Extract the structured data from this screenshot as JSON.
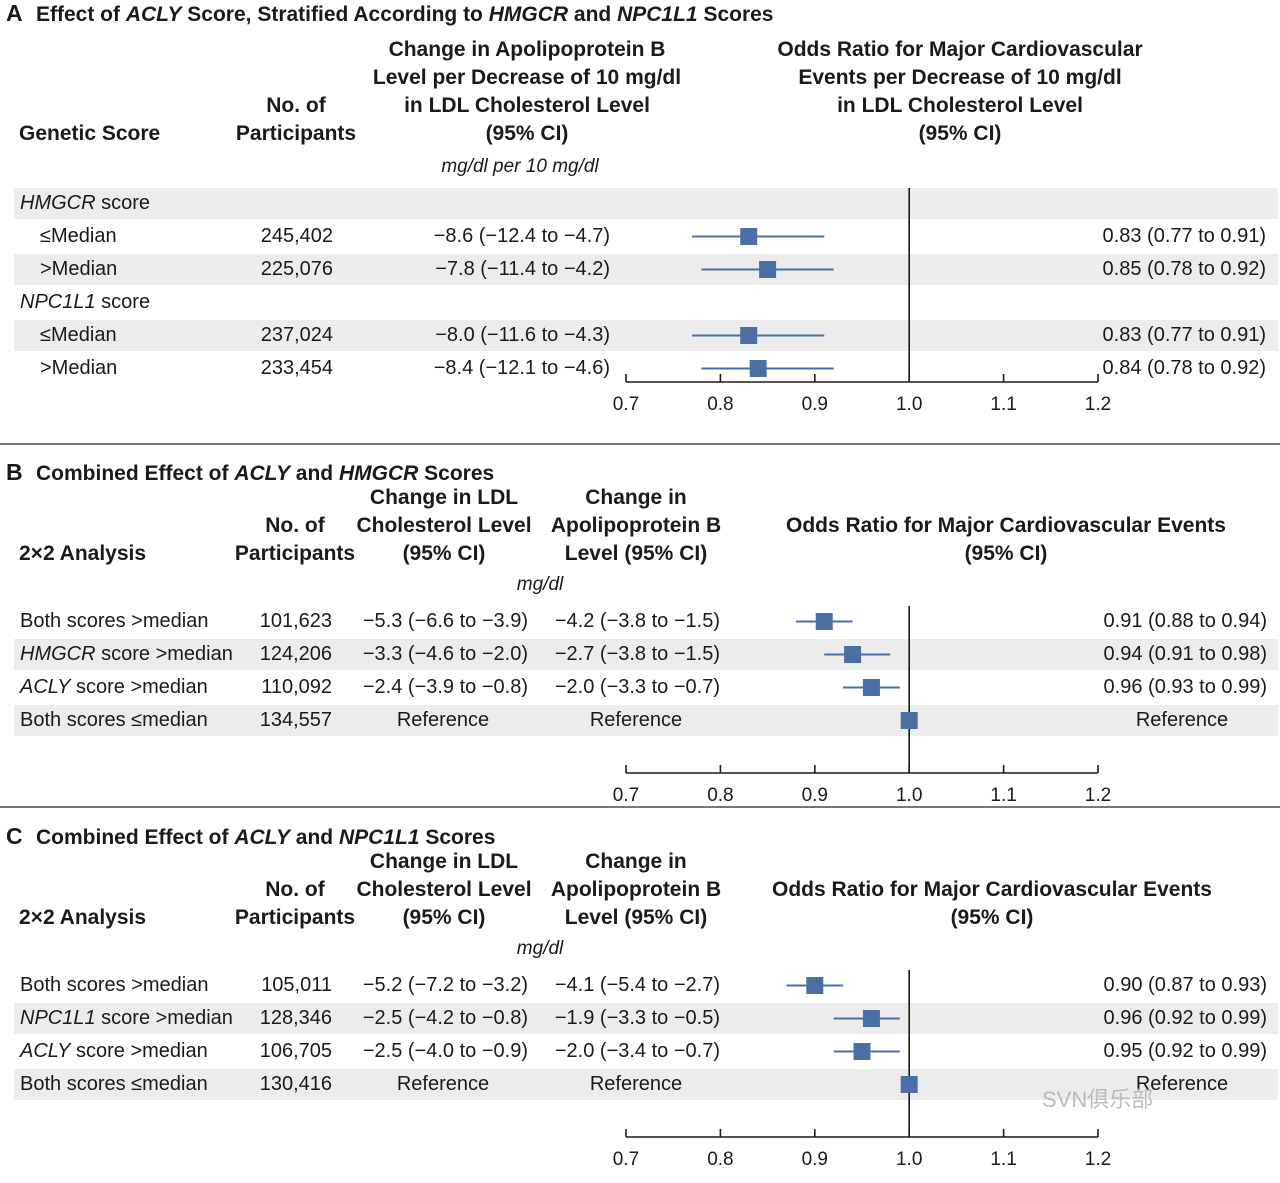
{
  "panelA": {
    "letter": "A",
    "title_parts": [
      "Effect of ",
      "ACLY",
      " Score, Stratified According to ",
      "HMGCR",
      " and ",
      "NPC1L1",
      " Scores"
    ],
    "headers": {
      "score": "Genetic Score",
      "participants": "No. of\nParticipants",
      "apob": "Change in Apolipoprotein B\nLevel per Decrease of 10 mg/dl\nin LDL Cholesterol Level\n(95% CI)",
      "or": "Odds Ratio for Major Cardiovascular\nEvents per Decrease of 10 mg/dl\nin LDL Cholesterol Level\n(95% CI)"
    },
    "unit": "mg/dl per 10 mg/dl",
    "group1": {
      "name": "HMGCR",
      "suffix": " score"
    },
    "group2": {
      "name": "NPC1L1",
      "suffix": " score"
    }
  },
  "panelB": {
    "letter": "B",
    "title_parts": [
      "Combined Effect of ",
      "ACLY",
      " and ",
      "HMGCR",
      " Scores"
    ],
    "headers": {
      "analysis": "2×2 Analysis",
      "participants": "No. of\nParticipants",
      "ldl": "Change in LDL\nCholesterol Level\n(95% CI)",
      "apob": "Change in\nApolipoprotein B\nLevel (95% CI)",
      "or": "Odds Ratio for Major Cardiovascular Events\n(95% CI)"
    },
    "unit": "mg/dl"
  },
  "panelC": {
    "letter": "C",
    "title_parts": [
      "Combined Effect of ",
      "ACLY",
      " and ",
      "NPC1L1",
      " Scores"
    ],
    "headers": {
      "analysis": "2×2 Analysis",
      "participants": "No. of\nParticipants",
      "ldl": "Change in LDL\nCholesterol Level\n(95% CI)",
      "apob": "Change in\nApolipoprotein B\nLevel (95% CI)",
      "or": "Odds Ratio for Major Cardiovascular Events\n(95% CI)"
    },
    "unit": "mg/dl"
  },
  "watermark": "SVN俱乐部",
  "colors": {
    "marker": "#4a6fa5",
    "band": "#ececec"
  },
  "chart_data": [
    {
      "type": "forest",
      "title": "Effect of ACLY Score, Stratified According to HMGCR and NPC1L1 Scores",
      "xlim": [
        0.7,
        1.2
      ],
      "xticks": [
        "0.7",
        "0.8",
        "0.9",
        "1.0",
        "1.1",
        "1.2"
      ],
      "reference_line": 1.0,
      "rows": [
        {
          "label": "≤Median",
          "group": "HMGCR score",
          "n": "245,402",
          "apob": "−8.6 (−12.4 to −4.7)",
          "or": 0.83,
          "lo": 0.77,
          "hi": 0.91,
          "or_text": "0.83 (0.77 to 0.91)"
        },
        {
          "label": ">Median",
          "group": "HMGCR score",
          "n": "225,076",
          "apob": "−7.8 (−11.4 to −4.2)",
          "or": 0.85,
          "lo": 0.78,
          "hi": 0.92,
          "or_text": "0.85 (0.78 to 0.92)"
        },
        {
          "label": "≤Median",
          "group": "NPC1L1 score",
          "n": "237,024",
          "apob": "−8.0 (−11.6 to −4.3)",
          "or": 0.83,
          "lo": 0.77,
          "hi": 0.91,
          "or_text": "0.83 (0.77 to 0.91)"
        },
        {
          "label": ">Median",
          "group": "NPC1L1 score",
          "n": "233,454",
          "apob": "−8.4 (−12.1 to −4.6)",
          "or": 0.84,
          "lo": 0.78,
          "hi": 0.92,
          "or_text": "0.84 (0.78 to 0.92)"
        }
      ]
    },
    {
      "type": "forest",
      "title": "Combined Effect of ACLY and HMGCR Scores",
      "xlim": [
        0.7,
        1.2
      ],
      "xticks": [
        "0.7",
        "0.8",
        "0.9",
        "1.0",
        "1.1",
        "1.2"
      ],
      "reference_line": 1.0,
      "rows": [
        {
          "label_pre": "",
          "label_it": "",
          "label_post": "Both scores >median",
          "n": "101,623",
          "ldl": "−5.3 (−6.6 to −3.9)",
          "apob": "−4.2 (−3.8 to −1.5)",
          "or": 0.91,
          "lo": 0.88,
          "hi": 0.94,
          "or_text": "0.91 (0.88 to 0.94)"
        },
        {
          "label_pre": "",
          "label_it": "HMGCR",
          "label_post": " score >median",
          "n": "124,206",
          "ldl": "−3.3 (−4.6 to −2.0)",
          "apob": "−2.7 (−3.8 to −1.5)",
          "or": 0.94,
          "lo": 0.91,
          "hi": 0.98,
          "or_text": "0.94 (0.91 to 0.98)"
        },
        {
          "label_pre": "",
          "label_it": "ACLY",
          "label_post": " score >median",
          "n": "110,092",
          "ldl": "−2.4 (−3.9 to −0.8)",
          "apob": "−2.0 (−3.3 to −0.7)",
          "or": 0.96,
          "lo": 0.93,
          "hi": 0.99,
          "or_text": "0.96 (0.93 to 0.99)"
        },
        {
          "label_pre": "",
          "label_it": "",
          "label_post": "Both scores ≤median",
          "n": "134,557",
          "ldl": "Reference",
          "apob": "Reference",
          "or": 1.0,
          "lo": 1.0,
          "hi": 1.0,
          "or_text": "Reference"
        }
      ]
    },
    {
      "type": "forest",
      "title": "Combined Effect of ACLY and NPC1L1 Scores",
      "xlim": [
        0.7,
        1.2
      ],
      "xticks": [
        "0.7",
        "0.8",
        "0.9",
        "1.0",
        "1.1",
        "1.2"
      ],
      "reference_line": 1.0,
      "rows": [
        {
          "label_pre": "",
          "label_it": "",
          "label_post": "Both scores >median",
          "n": "105,011",
          "ldl": "−5.2 (−7.2 to −3.2)",
          "apob": "−4.1 (−5.4 to −2.7)",
          "or": 0.9,
          "lo": 0.87,
          "hi": 0.93,
          "or_text": "0.90 (0.87 to 0.93)"
        },
        {
          "label_pre": "",
          "label_it": "NPC1L1",
          "label_post": " score >median",
          "n": "128,346",
          "ldl": "−2.5 (−4.2 to −0.8)",
          "apob": "−1.9 (−3.3 to −0.5)",
          "or": 0.96,
          "lo": 0.92,
          "hi": 0.99,
          "or_text": "0.96 (0.92 to 0.99)"
        },
        {
          "label_pre": "",
          "label_it": "ACLY",
          "label_post": " score >median",
          "n": "106,705",
          "ldl": "−2.5 (−4.0 to −0.9)",
          "apob": "−2.0 (−3.4 to −0.7)",
          "or": 0.95,
          "lo": 0.92,
          "hi": 0.99,
          "or_text": "0.95 (0.92 to 0.99)"
        },
        {
          "label_pre": "",
          "label_it": "",
          "label_post": "Both scores ≤median",
          "n": "130,416",
          "ldl": "Reference",
          "apob": "Reference",
          "or": 1.0,
          "lo": 1.0,
          "hi": 1.0,
          "or_text": "Reference"
        }
      ]
    }
  ]
}
